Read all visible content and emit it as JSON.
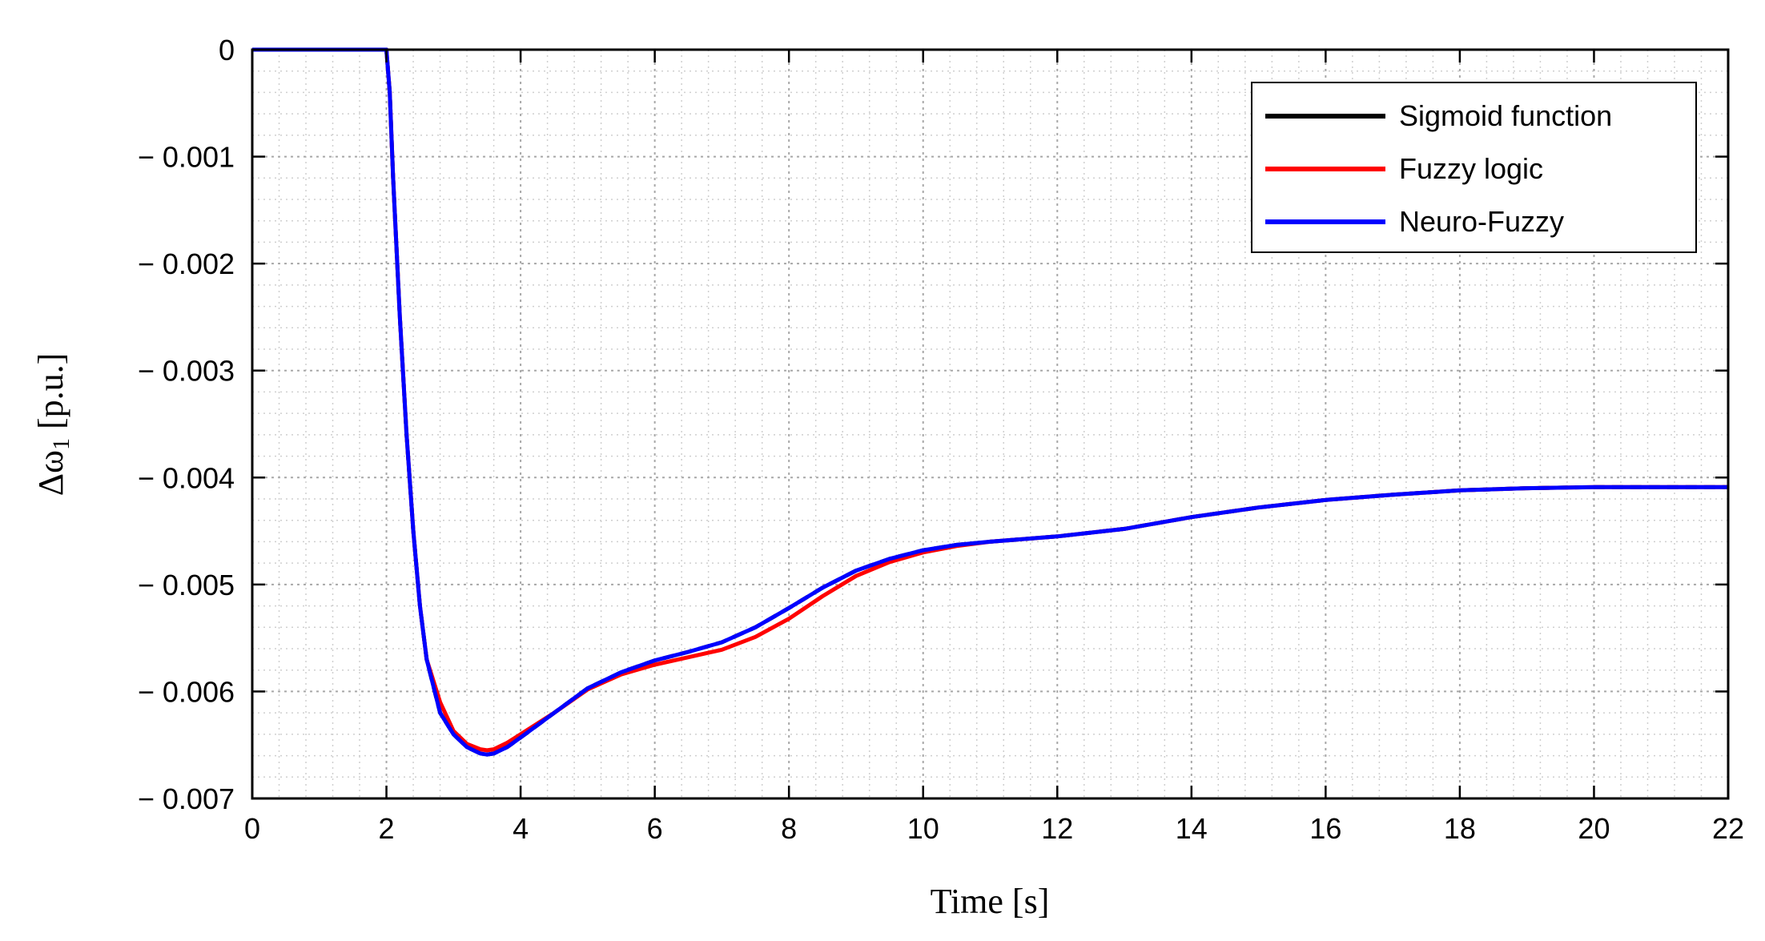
{
  "chart_data": {
    "type": "line",
    "title": "",
    "xlabel": "Time [s]",
    "ylabel": "Δω",
    "ylabel_subscript": "1",
    "ylabel_unit": " [p.u.]",
    "xlim": [
      0,
      22
    ],
    "ylim": [
      -0.007,
      0
    ],
    "xticks": [
      0,
      2,
      4,
      6,
      8,
      10,
      12,
      14,
      16,
      18,
      20,
      22
    ],
    "xtick_labels": [
      "0",
      "2",
      "4",
      "6",
      "8",
      "10",
      "12",
      "14",
      "16",
      "18",
      "20",
      "22"
    ],
    "yticks": [
      0,
      -0.001,
      -0.002,
      -0.003,
      -0.004,
      -0.005,
      -0.006,
      -0.007
    ],
    "ytick_labels": [
      "0",
      "− 0.001",
      "− 0.002",
      "− 0.003",
      "− 0.004",
      "− 0.005",
      "− 0.006",
      "− 0.007"
    ],
    "grid": true,
    "minor_grid": true,
    "legend_position": "top-right",
    "series": [
      {
        "name": "Sigmoid function",
        "color": "#000000",
        "style": "dashed",
        "x": [
          0,
          2,
          2.05,
          2.1,
          2.2,
          2.3,
          2.4,
          2.5,
          2.6,
          2.8,
          3.0,
          3.2,
          3.4,
          3.5,
          3.6,
          3.8,
          4.0,
          4.5,
          5.0,
          5.5,
          6.0,
          6.5,
          7.0,
          7.5,
          8.0,
          8.5,
          9.0,
          9.5,
          10.0,
          10.5,
          11.0,
          12.0,
          13.0,
          14.0,
          15.0,
          16.0,
          17.0,
          18.0,
          19.0,
          20.0,
          21.0,
          22.0
        ],
        "y": [
          0,
          0,
          -0.0004,
          -0.0012,
          -0.0025,
          -0.0036,
          -0.0045,
          -0.0052,
          -0.0057,
          -0.0062,
          -0.0064,
          -0.00652,
          -0.00658,
          -0.00659,
          -0.00658,
          -0.00652,
          -0.00643,
          -0.0062,
          -0.00597,
          -0.00582,
          -0.00571,
          -0.00563,
          -0.00554,
          -0.0054,
          -0.00522,
          -0.00503,
          -0.00487,
          -0.00476,
          -0.00468,
          -0.00463,
          -0.0046,
          -0.00455,
          -0.00448,
          -0.00437,
          -0.00428,
          -0.00421,
          -0.00416,
          -0.00412,
          -0.0041,
          -0.00409,
          -0.00409,
          -0.00409
        ]
      },
      {
        "name": "Fuzzy logic",
        "color": "#ff0000",
        "style": "solid",
        "x": [
          0,
          2,
          2.05,
          2.1,
          2.2,
          2.3,
          2.4,
          2.5,
          2.6,
          2.8,
          3.0,
          3.2,
          3.4,
          3.5,
          3.6,
          3.8,
          4.0,
          4.5,
          5.0,
          5.5,
          6.0,
          6.5,
          7.0,
          7.5,
          8.0,
          8.5,
          9.0,
          9.5,
          10.0,
          10.5,
          11.0,
          12.0,
          13.0,
          14.0,
          15.0,
          16.0,
          17.0,
          18.0,
          19.0,
          20.0,
          21.0,
          22.0
        ],
        "y": [
          0,
          0,
          -0.0004,
          -0.0012,
          -0.0025,
          -0.0036,
          -0.0045,
          -0.0052,
          -0.0057,
          -0.0061,
          -0.00637,
          -0.00649,
          -0.00654,
          -0.00655,
          -0.00654,
          -0.00648,
          -0.0064,
          -0.0062,
          -0.00598,
          -0.00584,
          -0.00575,
          -0.00568,
          -0.00561,
          -0.00549,
          -0.00532,
          -0.00511,
          -0.00492,
          -0.00479,
          -0.0047,
          -0.00464,
          -0.0046,
          -0.00455,
          -0.00448,
          -0.00437,
          -0.00428,
          -0.00421,
          -0.00416,
          -0.00412,
          -0.0041,
          -0.00409,
          -0.00409,
          -0.00409
        ]
      },
      {
        "name": "Neuro-Fuzzy",
        "color": "#0000ff",
        "style": "solid",
        "x": [
          0,
          2,
          2.05,
          2.1,
          2.2,
          2.3,
          2.4,
          2.5,
          2.6,
          2.8,
          3.0,
          3.2,
          3.4,
          3.5,
          3.6,
          3.8,
          4.0,
          4.5,
          5.0,
          5.5,
          6.0,
          6.5,
          7.0,
          7.5,
          8.0,
          8.5,
          9.0,
          9.5,
          10.0,
          10.5,
          11.0,
          12.0,
          13.0,
          14.0,
          15.0,
          16.0,
          17.0,
          18.0,
          19.0,
          20.0,
          21.0,
          22.0
        ],
        "y": [
          0,
          0,
          -0.0004,
          -0.0012,
          -0.0025,
          -0.0036,
          -0.0045,
          -0.0052,
          -0.0057,
          -0.0062,
          -0.0064,
          -0.00652,
          -0.00658,
          -0.00659,
          -0.00658,
          -0.00652,
          -0.00643,
          -0.0062,
          -0.00597,
          -0.00582,
          -0.00571,
          -0.00563,
          -0.00554,
          -0.0054,
          -0.00522,
          -0.00503,
          -0.00487,
          -0.00476,
          -0.00468,
          -0.00463,
          -0.0046,
          -0.00455,
          -0.00448,
          -0.00437,
          -0.00428,
          -0.00421,
          -0.00416,
          -0.00412,
          -0.0041,
          -0.00409,
          -0.00409,
          -0.00409
        ]
      }
    ]
  }
}
